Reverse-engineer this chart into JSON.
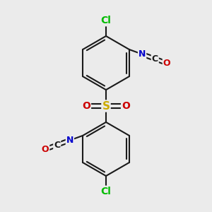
{
  "bg_color": "#ebebeb",
  "bond_color": "#1a1a1a",
  "bond_width": 1.5,
  "atom_colors": {
    "C": "#1a1a1a",
    "N": "#0000cc",
    "O": "#cc0000",
    "S": "#ccaa00",
    "Cl": "#00bb00"
  },
  "font_size": 9,
  "figsize": [
    3.0,
    3.0
  ],
  "dpi": 100,
  "xlim": [
    0,
    10
  ],
  "ylim": [
    0,
    10
  ]
}
